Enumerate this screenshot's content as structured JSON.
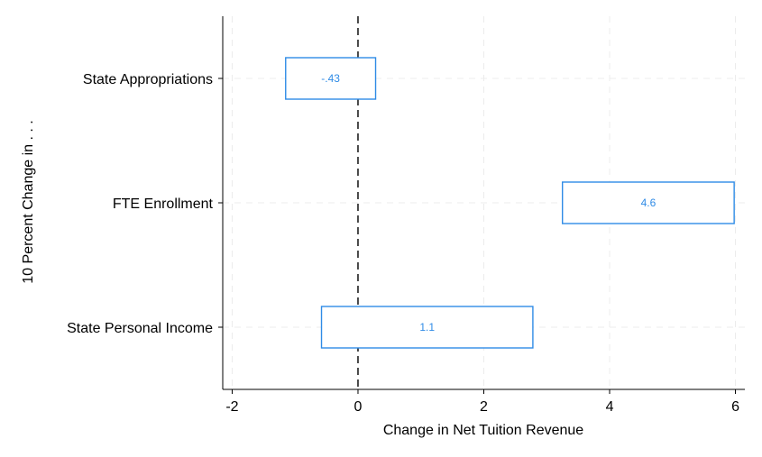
{
  "chart_data": {
    "type": "range-bar",
    "xlabel": "Change in Net Tuition Revenue",
    "ylabel": "10 Percent Change in . . .",
    "xlim": [
      -2.15,
      6.15
    ],
    "xticks": [
      {
        "value": -2,
        "label": "-2"
      },
      {
        "value": 0,
        "label": "0"
      },
      {
        "value": 2,
        "label": "2"
      },
      {
        "value": 4,
        "label": "4"
      },
      {
        "value": 6,
        "label": "6"
      }
    ],
    "reference_line": 0,
    "grid": true,
    "categories": [
      "State Appropriations",
      "FTE Enrollment",
      "State Personal Income"
    ],
    "series": [
      {
        "ranges": [
          {
            "low": -1.15,
            "high": 0.28,
            "estimate": -0.43,
            "label": "-.43"
          },
          {
            "low": 3.25,
            "high": 5.98,
            "estimate": 4.6,
            "label": "4.6"
          },
          {
            "low": -0.58,
            "high": 2.78,
            "estimate": 1.1,
            "label": "1.1"
          }
        ]
      }
    ],
    "colors": {
      "box": "#2f8be6",
      "grid": "#ececec",
      "axis": "#000000"
    }
  }
}
